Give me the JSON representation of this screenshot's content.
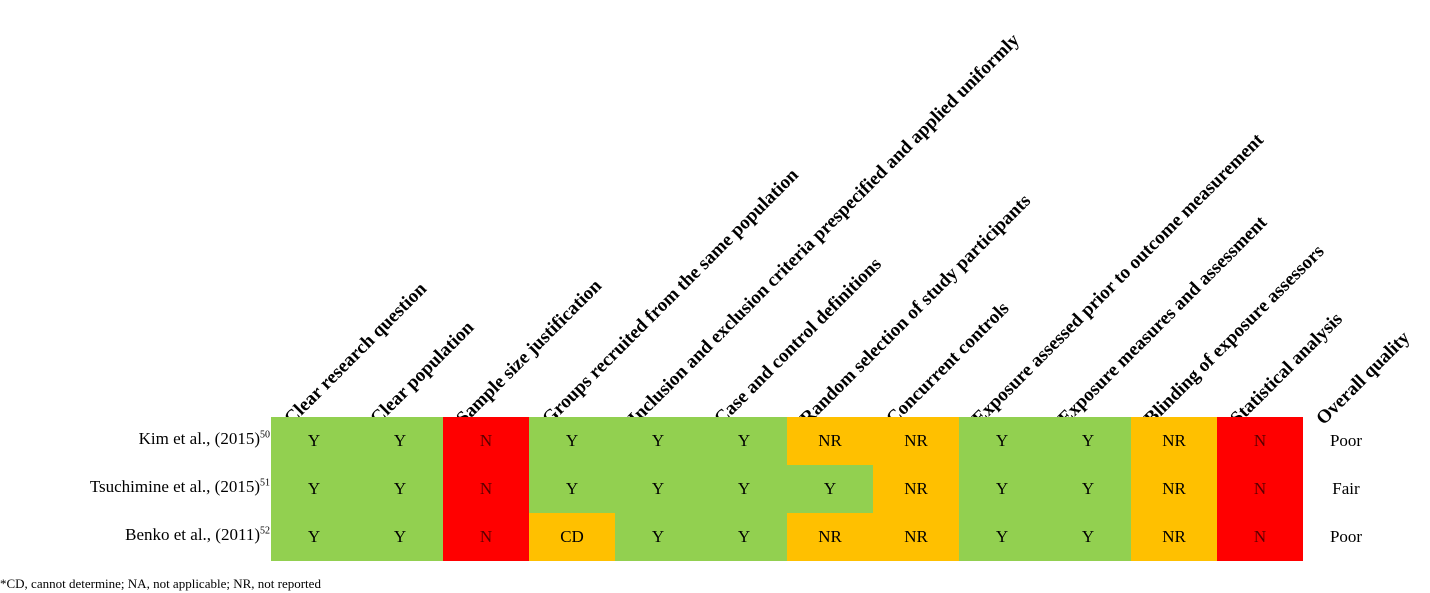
{
  "chart_data": {
    "type": "table",
    "columns": [
      "Clear research question",
      "Clear population",
      "Sample size justification",
      "Groups recruited from the same population",
      "Inclusion and exclusion criteria prespecified and applied uniformly",
      "Case and control definitions",
      "Random selection of study participants",
      "Concurrent controls",
      "Exposure assessed prior to outcome measurement",
      "Exposure measures and assessment",
      "Blinding of exposure assessors",
      "Statistical analysis",
      "Overall quality"
    ],
    "rows": [
      {
        "study": "Kim et al., (2015)",
        "ref": "50",
        "values": [
          "Y",
          "Y",
          "N",
          "Y",
          "Y",
          "Y",
          "NR",
          "NR",
          "Y",
          "Y",
          "NR",
          "N"
        ],
        "overall": "Poor"
      },
      {
        "study": "Tsuchimine et al., (2015)",
        "ref": "51",
        "values": [
          "Y",
          "Y",
          "N",
          "Y",
          "Y",
          "Y",
          "Y",
          "NR",
          "Y",
          "Y",
          "NR",
          "N"
        ],
        "overall": "Fair"
      },
      {
        "study": "Benko et al., (2011)",
        "ref": "52",
        "values": [
          "Y",
          "Y",
          "N",
          "CD",
          "Y",
          "Y",
          "NR",
          "NR",
          "Y",
          "Y",
          "NR",
          "N"
        ],
        "overall": "Poor"
      }
    ],
    "colors": {
      "Y": "#92d050",
      "N": "#ff0000",
      "NR": "#ffc000",
      "CD": "#ffc000"
    }
  },
  "footnote": "*CD, cannot determine; NA, not applicable; NR, not reported"
}
